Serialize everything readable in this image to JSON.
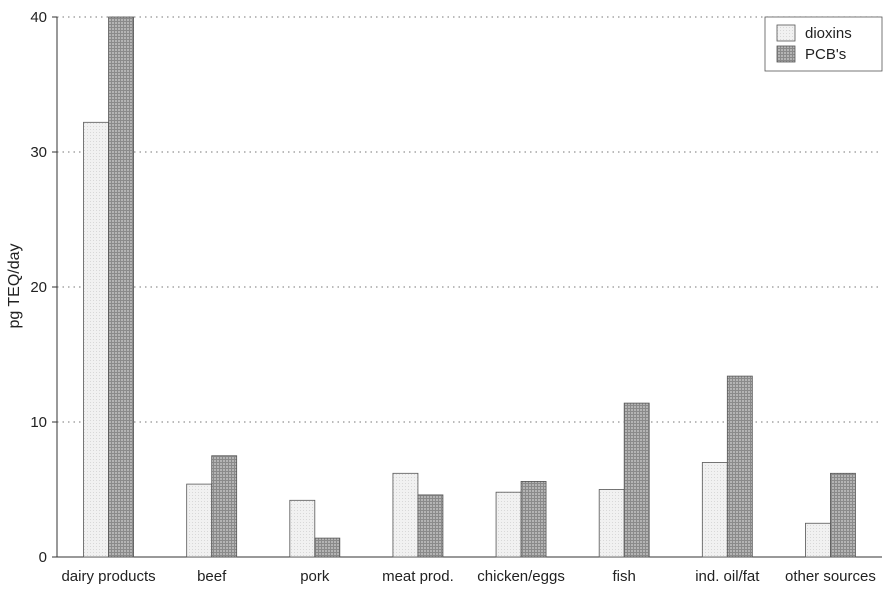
{
  "chart_data": {
    "type": "bar",
    "title": "",
    "xlabel": "",
    "ylabel": "pg TEQ/day",
    "ylim": [
      0,
      40
    ],
    "yticks": [
      0,
      10,
      20,
      30,
      40
    ],
    "grid": "horizontal dotted",
    "legend_position": "top-right",
    "categories": [
      "dairy products",
      "beef",
      "pork",
      "meat prod.",
      "chicken/eggs",
      "fish",
      "ind. oil/fat",
      "other sources"
    ],
    "series": [
      {
        "name": "dioxins",
        "color": "#eaeaea",
        "values": [
          32.2,
          5.4,
          4.2,
          6.2,
          4.8,
          5.0,
          7.0,
          2.5
        ]
      },
      {
        "name": "PCB's",
        "color": "#9a9a9a",
        "values": [
          40.0,
          7.5,
          1.4,
          4.6,
          5.6,
          11.4,
          13.4,
          6.2
        ]
      }
    ]
  }
}
